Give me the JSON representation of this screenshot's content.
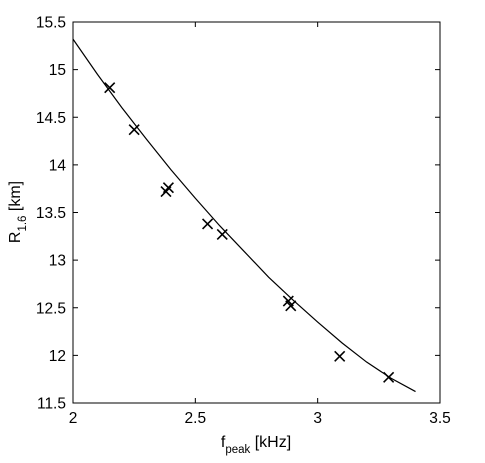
{
  "chart_data": {
    "type": "scatter",
    "xlabel": {
      "base": "f",
      "sub": "peak",
      "unit": " [kHz]"
    },
    "ylabel": {
      "base": "R",
      "sub": "1.6",
      "unit": " [km]"
    },
    "xlim": [
      2,
      3.5
    ],
    "ylim": [
      11.5,
      15.5
    ],
    "x_ticks": [
      "2",
      "2.5",
      "3",
      "3.5"
    ],
    "y_ticks": [
      "11.5",
      "12",
      "12.5",
      "13",
      "13.5",
      "14",
      "14.5",
      "15",
      "15.5"
    ],
    "grid": false,
    "legend": "none",
    "series": [
      {
        "kind": "scatter",
        "marker": "x",
        "x": [
          2.15,
          2.25,
          2.38,
          2.39,
          2.55,
          2.61,
          2.88,
          2.89,
          3.09,
          3.29
        ],
        "y": [
          14.81,
          14.37,
          13.72,
          13.76,
          13.38,
          13.27,
          12.57,
          12.52,
          11.99,
          11.77
        ]
      },
      {
        "kind": "line",
        "x": [
          2.0,
          2.1,
          2.2,
          2.3,
          2.4,
          2.5,
          2.6,
          2.7,
          2.8,
          2.9,
          3.0,
          3.1,
          3.2,
          3.3,
          3.4
        ],
        "y": [
          15.32,
          14.95,
          14.6,
          14.27,
          13.95,
          13.65,
          13.36,
          13.09,
          12.82,
          12.58,
          12.35,
          12.13,
          11.93,
          11.76,
          11.62
        ]
      }
    ]
  }
}
